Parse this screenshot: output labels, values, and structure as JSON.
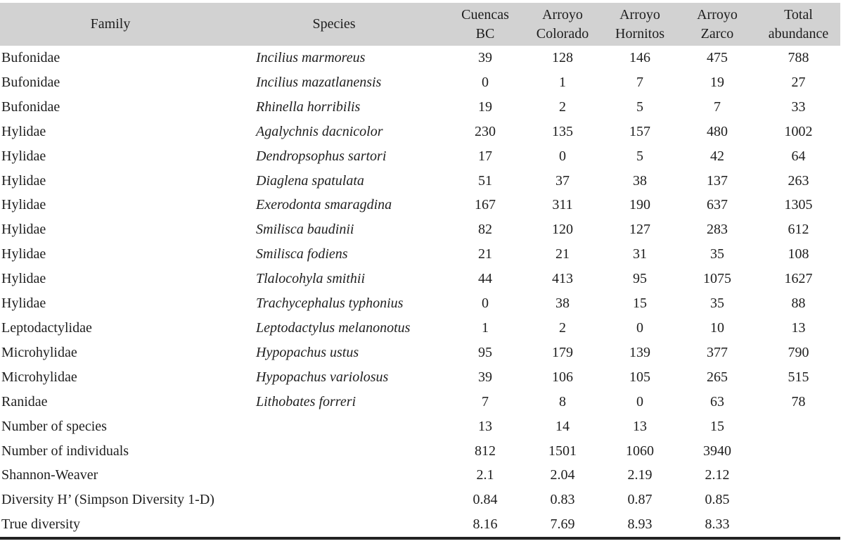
{
  "table": {
    "columns": [
      {
        "name": "family",
        "lines": [
          "Family"
        ]
      },
      {
        "name": "species",
        "lines": [
          "Species"
        ]
      },
      {
        "name": "cuencas-bc",
        "lines": [
          "Cuencas",
          "BC"
        ]
      },
      {
        "name": "arroyo-colorado",
        "lines": [
          "Arroyo",
          "Colorado"
        ]
      },
      {
        "name": "arroyo-hornitos",
        "lines": [
          "Arroyo",
          "Hornitos"
        ]
      },
      {
        "name": "arroyo-zarco",
        "lines": [
          "Arroyo",
          "Zarco"
        ]
      },
      {
        "name": "total-abundance",
        "lines": [
          "Total",
          "abundance"
        ]
      }
    ],
    "rows": [
      {
        "family": "Bufonidae",
        "species": "Incilius marmoreus",
        "values": [
          "39",
          "128",
          "146",
          "475",
          "788"
        ]
      },
      {
        "family": "Bufonidae",
        "species": "Incilius mazatlanensis",
        "values": [
          "0",
          "1",
          "7",
          "19",
          "27"
        ]
      },
      {
        "family": "Bufonidae",
        "species": "Rhinella horribilis",
        "values": [
          "19",
          "2",
          "5",
          "7",
          "33"
        ]
      },
      {
        "family": "Hylidae",
        "species": "Agalychnis dacnicolor",
        "values": [
          "230",
          "135",
          "157",
          "480",
          "1002"
        ]
      },
      {
        "family": "Hylidae",
        "species": "Dendropsophus sartori",
        "values": [
          "17",
          "0",
          "5",
          "42",
          "64"
        ]
      },
      {
        "family": "Hylidae",
        "species": "Diaglena spatulata",
        "values": [
          "51",
          "37",
          "38",
          "137",
          "263"
        ]
      },
      {
        "family": "Hylidae",
        "species": "Exerodonta smaragdina",
        "values": [
          "167",
          "311",
          "190",
          "637",
          "1305"
        ]
      },
      {
        "family": "Hylidae",
        "species": "Smilisca baudinii",
        "values": [
          "82",
          "120",
          "127",
          "283",
          "612"
        ]
      },
      {
        "family": "Hylidae",
        "species": "Smilisca fodiens",
        "values": [
          "21",
          "21",
          "31",
          "35",
          "108"
        ]
      },
      {
        "family": "Hylidae",
        "species": "Tlalocohyla smithii",
        "values": [
          "44",
          "413",
          "95",
          "1075",
          "1627"
        ]
      },
      {
        "family": "Hylidae",
        "species": "Trachycephalus typhonius",
        "values": [
          "0",
          "38",
          "15",
          "35",
          "88"
        ]
      },
      {
        "family": "Leptodactylidae",
        "species": "Leptodactylus melanonotus",
        "values": [
          "1",
          "2",
          "0",
          "10",
          "13"
        ]
      },
      {
        "family": "Microhylidae",
        "species": "Hypopachus ustus",
        "values": [
          "95",
          "179",
          "139",
          "377",
          "790"
        ]
      },
      {
        "family": "Microhylidae",
        "species": "Hypopachus variolosus",
        "values": [
          "39",
          "106",
          "105",
          "265",
          "515"
        ]
      },
      {
        "family": "Ranidae",
        "species": "Lithobates forreri",
        "values": [
          "7",
          "8",
          "0",
          "63",
          "78"
        ]
      },
      {
        "family": "Number of species",
        "species": "",
        "values": [
          "13",
          "14",
          "13",
          "15",
          ""
        ]
      },
      {
        "family": "Number of individuals",
        "species": "",
        "values": [
          "812",
          "1501",
          "1060",
          "3940",
          ""
        ]
      },
      {
        "family": "Shannon-Weaver",
        "species": "",
        "values": [
          "2.1",
          "2.04",
          "2.19",
          "2.12",
          ""
        ]
      },
      {
        "family": "Diversity H’ (Simpson Diversity 1-D)",
        "species": "",
        "values": [
          "0.84",
          "0.83",
          "0.87",
          "0.85",
          ""
        ]
      },
      {
        "family": "True diversity",
        "species": "",
        "values": [
          "8.16",
          "7.69",
          "8.93",
          "8.33",
          ""
        ]
      }
    ],
    "colors": {
      "header_bg": "#d2d2d2",
      "text": "#1e1e1e",
      "bottom_rule": "#222222"
    }
  }
}
